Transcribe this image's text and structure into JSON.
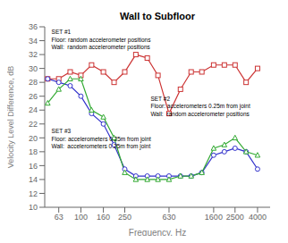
{
  "chart_data": {
    "type": "line",
    "title": "Wall to Subfloor",
    "xlabel": "Frequency, Hz",
    "ylabel": "Velocity Level Difference, dB",
    "x": [
      50,
      63,
      80,
      100,
      125,
      160,
      200,
      250,
      315,
      400,
      500,
      630,
      800,
      1000,
      1250,
      1600,
      2000,
      2500,
      3150,
      4000
    ],
    "series": [
      {
        "name": "SET #1",
        "color": "#cc3333",
        "marker": "square",
        "values": [
          28.5,
          28.5,
          29.5,
          29.0,
          30.5,
          29.5,
          28.0,
          29.5,
          32.0,
          31.5,
          29.0,
          23.5,
          27.0,
          29.5,
          29.5,
          30.5,
          30.5,
          30.5,
          28.0,
          30.0
        ]
      },
      {
        "name": "SET #2",
        "color": "#3333cc",
        "marker": "circle",
        "values": [
          28.5,
          28.0,
          27.5,
          26.0,
          23.5,
          22.0,
          19.0,
          15.5,
          14.5,
          14.5,
          14.5,
          14.5,
          14.5,
          14.5,
          15.0,
          17.5,
          18.0,
          18.5,
          18.0,
          15.5
        ]
      },
      {
        "name": "SET #3",
        "color": "#33aa33",
        "marker": "triangle",
        "values": [
          25.0,
          27.0,
          28.5,
          28.5,
          24.0,
          23.0,
          20.0,
          15.0,
          14.0,
          14.0,
          14.0,
          14.0,
          14.5,
          14.5,
          15.0,
          18.5,
          19.0,
          20.0,
          18.0,
          17.5
        ]
      }
    ],
    "log": "x",
    "xlim": [
      47,
      5200
    ],
    "xticks": [
      63,
      100,
      160,
      250,
      630,
      1600,
      2500,
      4000
    ],
    "ylim": [
      10,
      36
    ],
    "yticks": [
      10,
      12,
      14,
      16,
      18,
      20,
      22,
      24,
      26,
      28,
      30,
      32,
      34,
      36
    ],
    "grid": false,
    "annotations": [
      [
        "SET #1",
        "Floor: random accelerometer positions",
        "Wall:  random accelerometer positions"
      ],
      [
        "SET #2",
        "Floor: accelerometers 0.25m from joint",
        "Wall:  random accelerometer positions"
      ],
      [
        "SET #3",
        "Floor: accelerometers 0.25m from joint",
        "Wall:  accelerometers 0.25m from joint"
      ]
    ]
  }
}
